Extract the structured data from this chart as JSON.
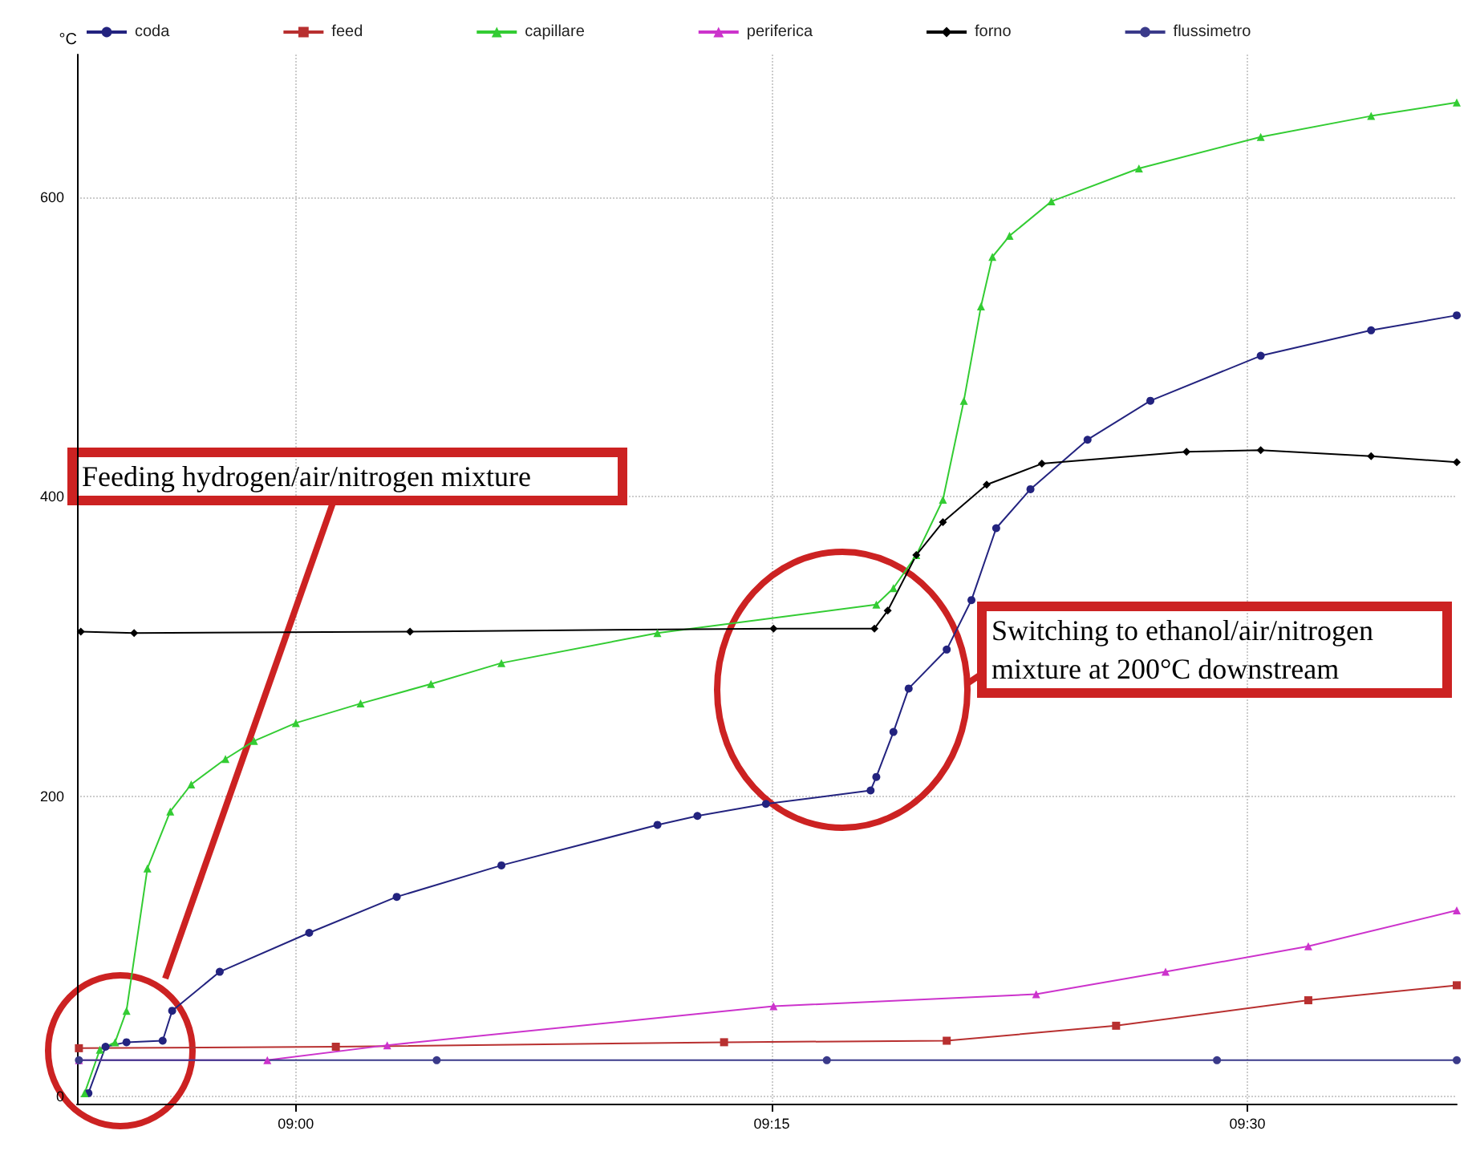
{
  "chart_data": {
    "type": "line",
    "ylabel": "°C",
    "xlim": [
      8.885,
      9.61
    ],
    "ylim": [
      -5,
      695
    ],
    "xticks": [
      {
        "value": 9,
        "label": "09:00"
      },
      {
        "value": 9.25,
        "label": "09:15"
      },
      {
        "value": 9.5,
        "label": "09:30"
      }
    ],
    "yticks": [
      0,
      200,
      400,
      600
    ],
    "grid": true,
    "legend": "top",
    "line_style": "solid",
    "series": [
      {
        "name": "coda",
        "color": "#23237f",
        "marker": "circle",
        "x": [
          8.891,
          8.9,
          8.911,
          8.93,
          8.935,
          8.96,
          9.007,
          9.053,
          9.108,
          9.19,
          9.211,
          9.247,
          9.302,
          9.305,
          9.314,
          9.322,
          9.342,
          9.355,
          9.368,
          9.386,
          9.416,
          9.449,
          9.507,
          9.565,
          9.61
        ],
        "values": [
          2,
          33,
          36,
          37,
          57,
          83,
          109,
          133,
          154,
          181,
          187,
          195,
          204,
          213,
          243,
          272,
          298,
          331,
          379,
          405,
          438,
          464,
          494,
          511,
          521
        ]
      },
      {
        "name": "feed",
        "color": "#b83030",
        "marker": "square",
        "x": [
          8.886,
          9.021,
          9.225,
          9.342,
          9.431,
          9.532,
          9.61
        ],
        "values": [
          32,
          33,
          36,
          37,
          47,
          64,
          74
        ]
      },
      {
        "name": "capillare",
        "color": "#33cc33",
        "marker": "triangle",
        "x": [
          8.889,
          8.897,
          8.905,
          8.911,
          8.922,
          8.934,
          8.945,
          8.963,
          8.978,
          9.0,
          9.034,
          9.071,
          9.108,
          9.19,
          9.305,
          9.314,
          9.326,
          9.34,
          9.351,
          9.36,
          9.366,
          9.375,
          9.397,
          9.443,
          9.507,
          9.565,
          9.61
        ],
        "values": [
          2,
          31,
          36,
          57,
          152,
          190,
          208,
          225,
          237,
          249,
          262,
          275,
          289,
          309,
          328,
          339,
          361,
          398,
          464,
          527,
          560,
          574,
          597,
          619,
          640,
          654,
          663
        ]
      },
      {
        "name": "periferica",
        "color": "#cc33cc",
        "marker": "triangle",
        "x": [
          8.886,
          8.985,
          9.048,
          9.251,
          9.389,
          9.457,
          9.532,
          9.61
        ],
        "values": [
          24,
          24,
          34,
          60,
          68,
          83,
          100,
          124
        ]
      },
      {
        "name": "forno",
        "color": "#000000",
        "marker": "diamond",
        "x": [
          8.887,
          8.915,
          9.06,
          9.251,
          9.304,
          9.311,
          9.326,
          9.34,
          9.363,
          9.392,
          9.468,
          9.507,
          9.565,
          9.61
        ],
        "values": [
          310,
          309,
          310,
          312,
          312,
          324,
          361,
          383,
          408,
          422,
          430,
          431,
          427,
          423
        ]
      },
      {
        "name": "flussimetro",
        "color": "#3a3a8a",
        "marker": "circle",
        "x": [
          8.886,
          9.074,
          9.279,
          9.484,
          9.61
        ],
        "values": [
          24,
          24,
          24,
          24,
          24
        ]
      }
    ],
    "annotations": [
      "Feeding hydrogen/air/nitrogen mixture",
      "Switching to ethanol/air/nitrogen mixture at 200°C downstream"
    ]
  }
}
